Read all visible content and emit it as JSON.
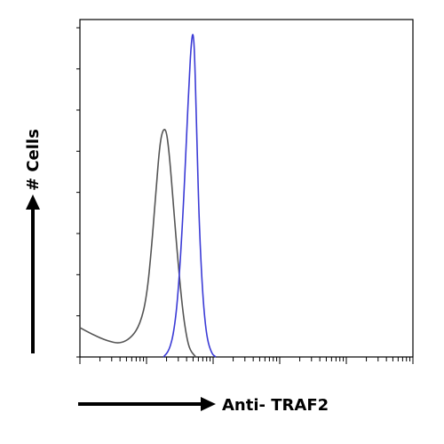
{
  "chart_data": {
    "type": "line",
    "subtype": "flow-cytometry-histogram",
    "xlabel": "Anti- TRAF2",
    "ylabel": "# Cells",
    "x_scale": "log",
    "xlim": [
      1,
      100000
    ],
    "ylim": [
      0,
      100
    ],
    "grid": false,
    "legend": "none",
    "series": [
      {
        "color": "#555555",
        "points": [
          [
            1.0,
            9
          ],
          [
            1.5,
            7
          ],
          [
            2.5,
            5
          ],
          [
            4,
            4
          ],
          [
            6,
            6
          ],
          [
            8,
            10
          ],
          [
            10,
            18
          ],
          [
            12,
            34
          ],
          [
            14,
            52
          ],
          [
            16,
            66
          ],
          [
            18,
            70
          ],
          [
            20,
            69
          ],
          [
            22,
            62
          ],
          [
            25,
            48
          ],
          [
            30,
            28
          ],
          [
            35,
            14
          ],
          [
            40,
            6
          ],
          [
            45,
            2
          ],
          [
            55,
            0
          ]
        ]
      },
      {
        "color": "#3b3bd6",
        "points": [
          [
            18,
            0
          ],
          [
            22,
            2
          ],
          [
            26,
            8
          ],
          [
            30,
            20
          ],
          [
            35,
            42
          ],
          [
            40,
            68
          ],
          [
            44,
            86
          ],
          [
            47,
            96
          ],
          [
            50,
            100
          ],
          [
            53,
            92
          ],
          [
            57,
            66
          ],
          [
            62,
            40
          ],
          [
            70,
            18
          ],
          [
            80,
            6
          ],
          [
            95,
            1
          ],
          [
            110,
            0
          ]
        ]
      }
    ]
  }
}
